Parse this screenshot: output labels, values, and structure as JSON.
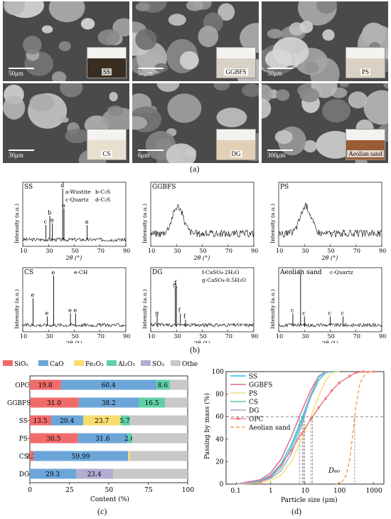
{
  "panel_labels": {
    "a": "(a)",
    "b": "(b)",
    "c": "(c)",
    "d": "(d)"
  },
  "sem_images": [
    {
      "name": "SS",
      "scale": "50μm",
      "inset_label": "SS",
      "inset_color": "#3a2e22"
    },
    {
      "name": "GGBFS",
      "scale": "50μm",
      "inset_label": "GGBFS",
      "inset_color": "#d8d2c6"
    },
    {
      "name": "PS",
      "scale": "50μm",
      "inset_label": "PS",
      "inset_color": "#d9d2c4"
    },
    {
      "name": "CS",
      "scale": "30μm",
      "inset_label": "CS",
      "inset_color": "#e8dfcf"
    },
    {
      "name": "DG",
      "scale": "6μm",
      "inset_label": "DG",
      "inset_color": "#e2cfb6"
    },
    {
      "name": "Aeolian sand",
      "scale": "300μm",
      "inset_label": "Aeolian sand",
      "inset_color": "#9a5c34"
    }
  ],
  "xrd": {
    "ylabel": "Intensity (a.u.)",
    "xlabel": "2θ (°)",
    "xticks": [
      "10",
      "30",
      "50",
      "70",
      "90"
    ],
    "plots": [
      {
        "title": "SS",
        "legend": [
          "a-Wustite",
          "b-C₂S",
          "c-Quartz",
          "d-C₂S"
        ],
        "peaks": [
          {
            "x": 28,
            "h": 0.35,
            "l": "c"
          },
          {
            "x": 31,
            "h": 0.5,
            "l": "b"
          },
          {
            "x": 33,
            "h": 0.38,
            "l": "a"
          },
          {
            "x": 41,
            "h": 0.95,
            "l": "d"
          },
          {
            "x": 42,
            "h": 0.62,
            "l": "a"
          },
          {
            "x": 60,
            "h": 0.35,
            "l": "a"
          }
        ]
      },
      {
        "title": "GGBFS",
        "legend": [],
        "peaks": []
      },
      {
        "title": "PS",
        "legend": [],
        "peaks": []
      },
      {
        "title": "CS",
        "legend": [
          "e-CH"
        ],
        "peaks": [
          {
            "x": 18,
            "h": 0.55,
            "l": "e"
          },
          {
            "x": 29,
            "h": 0.25,
            "l": "e"
          },
          {
            "x": 34,
            "h": 0.92,
            "l": "e"
          },
          {
            "x": 47,
            "h": 0.3,
            "l": "e"
          },
          {
            "x": 51,
            "h": 0.3,
            "l": "e"
          }
        ]
      },
      {
        "title": "DG",
        "legend": [
          "f-CaSO₄·2H₂O",
          "g-CaSO₄·0.5H₂O"
        ],
        "peaks": [
          {
            "x": 15,
            "h": 0.25,
            "l": "g"
          },
          {
            "x": 29,
            "h": 0.72,
            "l": "g"
          },
          {
            "x": 30,
            "h": 0.75,
            "l": "f"
          },
          {
            "x": 33,
            "h": 0.3,
            "l": "f"
          },
          {
            "x": 37,
            "h": 0.2,
            "l": "f"
          }
        ]
      },
      {
        "title": "Aeolian sand",
        "legend": [
          "c-Quartz"
        ],
        "peaks": [
          {
            "x": 21,
            "h": 0.3,
            "l": "c"
          },
          {
            "x": 27,
            "h": 0.95,
            "l": "c"
          },
          {
            "x": 30,
            "h": 0.25,
            "l": "c"
          },
          {
            "x": 50,
            "h": 0.25,
            "l": "c"
          },
          {
            "x": 60,
            "h": 0.25,
            "l": "c"
          }
        ]
      }
    ]
  },
  "chart_data": [
    {
      "type": "bar",
      "orientation": "horizontal-stacked",
      "xlabel": "Content (%)",
      "xlim": [
        0,
        100
      ],
      "xticks": [
        "0",
        "25",
        "50",
        "75",
        "100"
      ],
      "legend_position": "top",
      "legend": [
        {
          "name": "SiO₂",
          "color": "#f26b6b"
        },
        {
          "name": "CaO",
          "color": "#6ca6d9"
        },
        {
          "name": "Fe₂O₃",
          "color": "#f7dc6f"
        },
        {
          "name": "Al₂O₃",
          "color": "#5fd1a5"
        },
        {
          "name": "SO₃",
          "color": "#b1aed2"
        },
        {
          "name": "Other",
          "color": "#c8c8c8"
        }
      ],
      "categories": [
        "OPC",
        "GGBFS",
        "SS",
        "PS",
        "CS",
        "DG"
      ],
      "rows": [
        {
          "cat": "OPC",
          "segments": [
            19.8,
            60.4,
            0,
            8.6,
            0,
            11.2
          ],
          "labels": [
            "19.8",
            "60.4",
            "",
            "8.6",
            "",
            ""
          ]
        },
        {
          "cat": "GGBFS",
          "segments": [
            31.0,
            38.2,
            0,
            16.5,
            0,
            14.3
          ],
          "labels": [
            "31.0",
            "38.2",
            "",
            "16.5",
            "",
            ""
          ]
        },
        {
          "cat": "SS",
          "segments": [
            13.5,
            20.4,
            23.7,
            5.7,
            0,
            36.7
          ],
          "labels": [
            "13.5",
            "20.4",
            "23.7",
            "5.7",
            "",
            ""
          ]
        },
        {
          "cat": "PS",
          "segments": [
            30.5,
            31.6,
            0,
            2.6,
            0,
            35.3
          ],
          "labels": [
            "30.5",
            "31.6",
            "",
            "2.6",
            "",
            ""
          ]
        },
        {
          "cat": "CS",
          "segments": [
            2.3,
            59.99,
            1.2,
            0,
            0,
            36.51
          ],
          "labels": [
            "2.3",
            "59.99",
            "",
            "",
            "",
            ""
          ]
        },
        {
          "cat": "DG",
          "segments": [
            0,
            29.3,
            0,
            0,
            23.4,
            47.3
          ],
          "labels": [
            "",
            "29.3",
            "",
            "",
            "23.4",
            ""
          ],
          "note": "DG row: CaO 29.3 spans 0–49, SO3 23.4"
        }
      ]
    },
    {
      "type": "line",
      "xlabel": "Particle size (μm)",
      "ylabel": "Passing by mass (%)",
      "xscale": "log",
      "xlim": [
        0.05,
        2000
      ],
      "ylim": [
        0,
        100
      ],
      "xticks": [
        "0.1",
        "1",
        "10",
        "100",
        "1000"
      ],
      "yticks": [
        "0",
        "20",
        "40",
        "60",
        "80",
        "100"
      ],
      "annotation": "D₆₀",
      "reference_line_y": 60,
      "series": [
        {
          "name": "SS",
          "color": "#18c9e6",
          "dash": false,
          "x": [
            0.1,
            0.5,
            1,
            2,
            4,
            8,
            15,
            25,
            40,
            60,
            100
          ],
          "y": [
            0,
            3,
            8,
            18,
            35,
            58,
            80,
            95,
            100,
            100,
            100
          ]
        },
        {
          "name": "GGBFS",
          "color": "#e8688a",
          "dash": false,
          "x": [
            0.1,
            0.5,
            1,
            2,
            4,
            8,
            15,
            25,
            40,
            60
          ],
          "y": [
            0,
            4,
            10,
            22,
            42,
            65,
            84,
            96,
            100,
            100
          ]
        },
        {
          "name": "PS",
          "color": "#f2e07a",
          "dash": false,
          "x": [
            0.1,
            0.5,
            1,
            2,
            4,
            8,
            15,
            25,
            40,
            60,
            100
          ],
          "y": [
            0,
            1,
            3,
            8,
            20,
            40,
            60,
            78,
            92,
            99,
            100
          ]
        },
        {
          "name": "CS",
          "color": "#53c7b0",
          "dash": false,
          "x": [
            0.1,
            0.5,
            1,
            2,
            4,
            8,
            15,
            25,
            40,
            60
          ],
          "y": [
            0,
            2,
            6,
            15,
            32,
            55,
            78,
            92,
            99,
            100
          ]
        },
        {
          "name": "DG",
          "color": "#a7a3cf",
          "dash": false,
          "x": [
            0.1,
            0.5,
            1,
            2,
            4,
            8,
            15,
            25,
            40,
            60
          ],
          "y": [
            0,
            2,
            5,
            12,
            27,
            52,
            80,
            96,
            100,
            100
          ]
        },
        {
          "name": "OPC",
          "color": "#ee7b80",
          "dash": false,
          "markers": true,
          "x": [
            0.5,
            1,
            2,
            4,
            8,
            15,
            25,
            40,
            60,
            100,
            200,
            300,
            500,
            1000
          ],
          "y": [
            2,
            7,
            17,
            30,
            45,
            58,
            68,
            76,
            83,
            90,
            96,
            99,
            100,
            100
          ]
        },
        {
          "name": "Aeolian sand",
          "color": "#f0a45c",
          "dash": true,
          "x": [
            80,
            120,
            160,
            200,
            250,
            300,
            400,
            600,
            1000
          ],
          "y": [
            0,
            2,
            8,
            22,
            45,
            68,
            90,
            99,
            100
          ]
        }
      ]
    }
  ]
}
